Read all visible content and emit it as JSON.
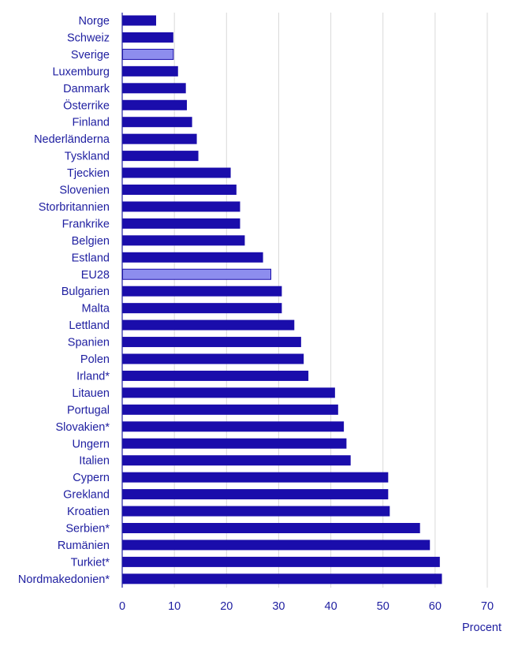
{
  "colors": {
    "bar": "#1a0dab",
    "highlight": "#8d8dee",
    "axis": "#1e1ea0",
    "grid": "#d9d9d9",
    "text": "#1e1ea0"
  },
  "chart_data": {
    "type": "bar",
    "orientation": "horizontal",
    "xlabel": "Procent",
    "xlim": [
      0,
      70
    ],
    "xticks": [
      0,
      10,
      20,
      30,
      40,
      50,
      60,
      70
    ],
    "grid": true,
    "highlighted": [
      "Sverige",
      "EU28"
    ],
    "categories": [
      "Norge",
      "Schweiz",
      "Sverige",
      "Luxemburg",
      "Danmark",
      "Österrike",
      "Finland",
      "Nederländerna",
      "Tyskland",
      "Tjeckien",
      "Slovenien",
      "Storbritannien",
      "Frankrike",
      "Belgien",
      "Estland",
      "EU28",
      "Bulgarien",
      "Malta",
      "Lettland",
      "Spanien",
      "Polen",
      "Irland*",
      "Litauen",
      "Portugal",
      "Slovakien*",
      "Ungern",
      "Italien",
      "Cypern",
      "Grekland",
      "Kroatien",
      "Serbien*",
      "Rumänien",
      "Turkiet*",
      "Nordmakedonien*"
    ],
    "values": [
      6.5,
      9.8,
      9.8,
      10.7,
      12.2,
      12.4,
      13.4,
      14.3,
      14.6,
      20.8,
      21.9,
      22.6,
      22.6,
      23.5,
      27.0,
      28.5,
      30.6,
      30.6,
      33.0,
      34.3,
      34.8,
      35.7,
      40.8,
      41.4,
      42.5,
      43.0,
      43.8,
      51.0,
      51.0,
      51.3,
      57.1,
      59.0,
      60.9,
      61.3
    ]
  }
}
